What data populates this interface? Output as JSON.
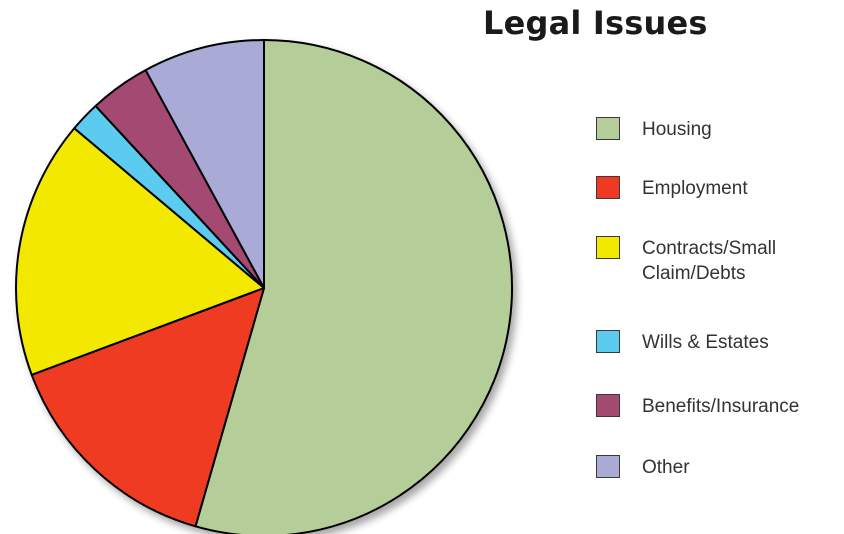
{
  "chart_data": {
    "type": "pie",
    "title": "Legal Issues",
    "legend_position": "right",
    "slices": [
      {
        "label": "Housing",
        "value": 55,
        "color": "#b5cd98"
      },
      {
        "label": "Employment",
        "value": 15,
        "color": "#ee3a24"
      },
      {
        "label": "Contracts/Small Claim/Debts",
        "value": 17,
        "color": "#f2e800"
      },
      {
        "label": "Wills & Estates",
        "value": 2,
        "color": "#5bcbf0"
      },
      {
        "label": "Benefits/Insurance",
        "value": 4,
        "color": "#a34a72"
      },
      {
        "label": "Other",
        "value": 8,
        "color": "#aaaad6"
      }
    ]
  },
  "legend": {
    "items": [
      {
        "label": "Housing"
      },
      {
        "label": "Employment"
      },
      {
        "label": "Contracts/Small Claim/Debts"
      },
      {
        "label": "Wills & Estates"
      },
      {
        "label": "Benefits/Insurance"
      },
      {
        "label": "Other"
      }
    ]
  }
}
